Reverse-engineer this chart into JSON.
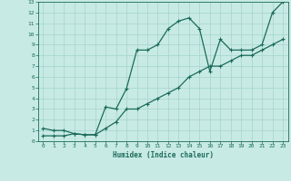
{
  "xlabel": "Humidex (Indice chaleur)",
  "xlim": [
    -0.5,
    23.5
  ],
  "ylim": [
    0,
    13
  ],
  "xticks": [
    0,
    1,
    2,
    3,
    4,
    5,
    6,
    7,
    8,
    9,
    10,
    11,
    12,
    13,
    14,
    15,
    16,
    17,
    18,
    19,
    20,
    21,
    22,
    23
  ],
  "yticks": [
    0,
    1,
    2,
    3,
    4,
    5,
    6,
    7,
    8,
    9,
    10,
    11,
    12,
    13
  ],
  "bg_color": "#c8eae4",
  "line_color": "#1a6b5a",
  "grid_color": "#a8d8d0",
  "line1_x": [
    0,
    1,
    2,
    3,
    4,
    5,
    6,
    7,
    8,
    9,
    10,
    11,
    12,
    13,
    14,
    15,
    16,
    17,
    18,
    19,
    20,
    21,
    22,
    23
  ],
  "line1_y": [
    1.2,
    1.0,
    1.0,
    0.7,
    0.6,
    0.6,
    3.2,
    3.0,
    4.9,
    8.5,
    8.5,
    9.0,
    10.5,
    11.2,
    11.5,
    10.5,
    6.5,
    9.5,
    8.5,
    8.5,
    8.5,
    9.0,
    12.0,
    13.0
  ],
  "line2_x": [
    0,
    1,
    2,
    3,
    4,
    5,
    6,
    7,
    8,
    9,
    10,
    11,
    12,
    13,
    14,
    15,
    16,
    17,
    18,
    19,
    20,
    21,
    22,
    23
  ],
  "line2_y": [
    0.5,
    0.5,
    0.5,
    0.7,
    0.6,
    0.6,
    1.2,
    1.8,
    3.0,
    3.0,
    3.5,
    4.0,
    4.5,
    5.0,
    6.0,
    6.5,
    7.0,
    7.0,
    7.5,
    8.0,
    8.0,
    8.5,
    9.0,
    9.5
  ]
}
